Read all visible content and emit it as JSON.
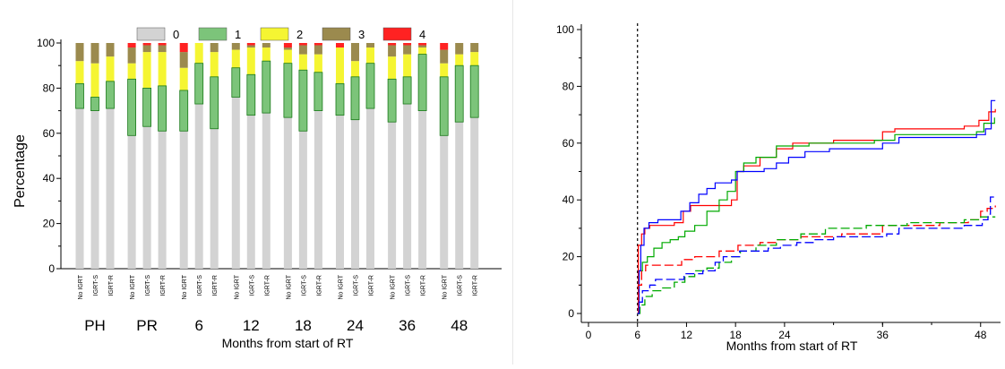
{
  "chart_data": [
    {
      "type": "bar",
      "stacked": true,
      "ylabel": "Percentage",
      "xlabel": "Months from start of RT",
      "ylim": [
        0,
        100
      ],
      "yticks": [
        0,
        20,
        40,
        60,
        80,
        100
      ],
      "legend_position": "top",
      "legend": [
        {
          "label": "0",
          "color": "#d3d3d3"
        },
        {
          "label": "1",
          "color": "#7cc47a"
        },
        {
          "label": "2",
          "color": "#f5f532"
        },
        {
          "label": "3",
          "color": "#9b8a4e"
        },
        {
          "label": "4",
          "color": "#ff2222"
        }
      ],
      "bar_labels": [
        "No IGRT",
        "IGRT-S",
        "IGRT-R"
      ],
      "groups": [
        {
          "label": "PH",
          "bars": [
            [
              71,
              11,
              10,
              8,
              0
            ],
            [
              70,
              6,
              15,
              9,
              0
            ],
            [
              71,
              12,
              11,
              6,
              0
            ]
          ]
        },
        {
          "label": "PR",
          "bars": [
            [
              59,
              25,
              7,
              7,
              2
            ],
            [
              63,
              17,
              16,
              3,
              1
            ],
            [
              61,
              20,
              15,
              3,
              1
            ]
          ]
        },
        {
          "label": "6",
          "bars": [
            [
              61,
              18,
              10,
              7,
              4
            ],
            [
              73,
              18,
              9,
              0,
              0
            ],
            [
              62,
              23,
              11,
              4,
              0
            ]
          ]
        },
        {
          "label": "12",
          "bars": [
            [
              76,
              13,
              8,
              3,
              0
            ],
            [
              68,
              18,
              12,
              1,
              1
            ],
            [
              69,
              23,
              6,
              2,
              0
            ]
          ]
        },
        {
          "label": "18",
          "bars": [
            [
              67,
              24,
              6,
              1,
              2
            ],
            [
              61,
              27,
              7,
              4,
              1
            ],
            [
              70,
              17,
              8,
              4,
              1
            ]
          ]
        },
        {
          "label": "24",
          "bars": [
            [
              68,
              14,
              16,
              0,
              2
            ],
            [
              66,
              19,
              7,
              8,
              0
            ],
            [
              71,
              20,
              7,
              2,
              0
            ]
          ]
        },
        {
          "label": "36",
          "bars": [
            [
              65,
              19,
              10,
              5,
              1
            ],
            [
              73,
              12,
              10,
              4,
              1
            ],
            [
              70,
              25,
              3,
              1,
              1
            ]
          ]
        },
        {
          "label": "48",
          "bars": [
            [
              59,
              26,
              6,
              6,
              3
            ],
            [
              65,
              25,
              5,
              5,
              0
            ],
            [
              67,
              23,
              6,
              4,
              0
            ]
          ]
        }
      ]
    },
    {
      "type": "line",
      "subtype": "step",
      "xlabel": "Months from start of RT",
      "ylabel": "",
      "xlim": [
        0,
        50
      ],
      "ylim": [
        0,
        100
      ],
      "xticks": [
        0,
        6,
        12,
        18,
        24,
        36,
        48
      ],
      "yticks": [
        0,
        20,
        40,
        60,
        80,
        100
      ],
      "reference_line_x": 6,
      "series": [
        {
          "color": "#ff0000",
          "style": "solid",
          "points": [
            [
              6,
              0
            ],
            [
              6.1,
              24
            ],
            [
              6.5,
              28
            ],
            [
              6.9,
              30
            ],
            [
              7.5,
              31
            ],
            [
              10.5,
              32
            ],
            [
              11.6,
              36
            ],
            [
              12.5,
              38
            ],
            [
              16.5,
              38
            ],
            [
              17.5,
              40
            ],
            [
              18.2,
              50
            ],
            [
              19,
              52
            ],
            [
              21,
              55
            ],
            [
              23,
              58
            ],
            [
              25,
              60
            ],
            [
              30,
              61
            ],
            [
              36,
              64
            ],
            [
              37.5,
              65
            ],
            [
              46,
              66
            ],
            [
              47.8,
              68
            ],
            [
              49,
              71
            ],
            [
              49.8,
              72
            ]
          ]
        },
        {
          "color": "#00aa00",
          "style": "solid",
          "points": [
            [
              6,
              0
            ],
            [
              6.2,
              15
            ],
            [
              6.6,
              18
            ],
            [
              7.2,
              20
            ],
            [
              8,
              23
            ],
            [
              9,
              25
            ],
            [
              10,
              26
            ],
            [
              11,
              27
            ],
            [
              11.8,
              29
            ],
            [
              13,
              31
            ],
            [
              14.5,
              36
            ],
            [
              16,
              40
            ],
            [
              17,
              43
            ],
            [
              18,
              50
            ],
            [
              19,
              53
            ],
            [
              20.5,
              55
            ],
            [
              23,
              59
            ],
            [
              27,
              60
            ],
            [
              35,
              61
            ],
            [
              37.5,
              63
            ],
            [
              47.5,
              64
            ],
            [
              48.4,
              67
            ],
            [
              49.7,
              69
            ]
          ]
        },
        {
          "color": "#0000ff",
          "style": "solid",
          "points": [
            [
              6,
              0
            ],
            [
              6.2,
              15
            ],
            [
              6.4,
              24
            ],
            [
              6.8,
              30
            ],
            [
              7.4,
              32
            ],
            [
              8.5,
              33
            ],
            [
              10.5,
              33
            ],
            [
              11.3,
              36
            ],
            [
              12.4,
              39
            ],
            [
              13.5,
              42
            ],
            [
              14.5,
              44
            ],
            [
              15.5,
              46
            ],
            [
              17.5,
              47
            ],
            [
              18.2,
              50
            ],
            [
              21.5,
              51
            ],
            [
              23,
              53
            ],
            [
              24.5,
              55
            ],
            [
              26.5,
              57
            ],
            [
              29.5,
              58
            ],
            [
              36,
              60
            ],
            [
              38,
              62
            ],
            [
              47.5,
              63
            ],
            [
              48.6,
              65
            ],
            [
              49.3,
              75
            ],
            [
              49.8,
              75
            ]
          ]
        },
        {
          "color": "#ff0000",
          "style": "dashed",
          "points": [
            [
              6,
              0
            ],
            [
              6.1,
              10
            ],
            [
              6.5,
              15
            ],
            [
              7,
              17
            ],
            [
              11,
              17
            ],
            [
              11.4,
              19
            ],
            [
              13,
              20
            ],
            [
              16,
              22
            ],
            [
              17.5,
              22
            ],
            [
              18.3,
              24
            ],
            [
              21,
              25
            ],
            [
              23,
              26
            ],
            [
              26,
              27
            ],
            [
              31,
              28
            ],
            [
              36,
              31
            ],
            [
              43,
              32
            ],
            [
              46.5,
              33
            ],
            [
              48,
              36
            ],
            [
              48.8,
              37
            ],
            [
              49.8,
              38
            ]
          ]
        },
        {
          "color": "#00aa00",
          "style": "dashed",
          "points": [
            [
              6,
              0
            ],
            [
              6.3,
              3
            ],
            [
              6.9,
              6
            ],
            [
              7.8,
              8
            ],
            [
              9,
              9
            ],
            [
              10.5,
              11
            ],
            [
              11.8,
              13
            ],
            [
              13,
              15
            ],
            [
              14.5,
              16
            ],
            [
              16,
              18
            ],
            [
              17.5,
              20
            ],
            [
              18.6,
              22
            ],
            [
              20.5,
              24
            ],
            [
              23,
              26
            ],
            [
              26,
              28
            ],
            [
              29,
              30
            ],
            [
              34,
              31
            ],
            [
              39,
              32
            ],
            [
              46,
              33
            ],
            [
              48,
              34
            ],
            [
              49.8,
              34
            ]
          ]
        },
        {
          "color": "#0000ff",
          "style": "dashed",
          "points": [
            [
              6,
              0
            ],
            [
              6.2,
              4
            ],
            [
              6.6,
              8
            ],
            [
              7.5,
              10
            ],
            [
              8.2,
              12
            ],
            [
              11,
              12
            ],
            [
              11.7,
              14
            ],
            [
              14,
              15
            ],
            [
              15.5,
              18
            ],
            [
              16.5,
              20
            ],
            [
              18.5,
              22
            ],
            [
              22,
              23
            ],
            [
              23.5,
              24
            ],
            [
              25.5,
              25
            ],
            [
              27.5,
              26
            ],
            [
              30,
              27
            ],
            [
              36.5,
              28
            ],
            [
              38,
              30
            ],
            [
              46,
              31
            ],
            [
              48.2,
              33
            ],
            [
              48.9,
              35
            ],
            [
              49.2,
              41
            ],
            [
              49.8,
              41
            ]
          ]
        }
      ]
    }
  ]
}
